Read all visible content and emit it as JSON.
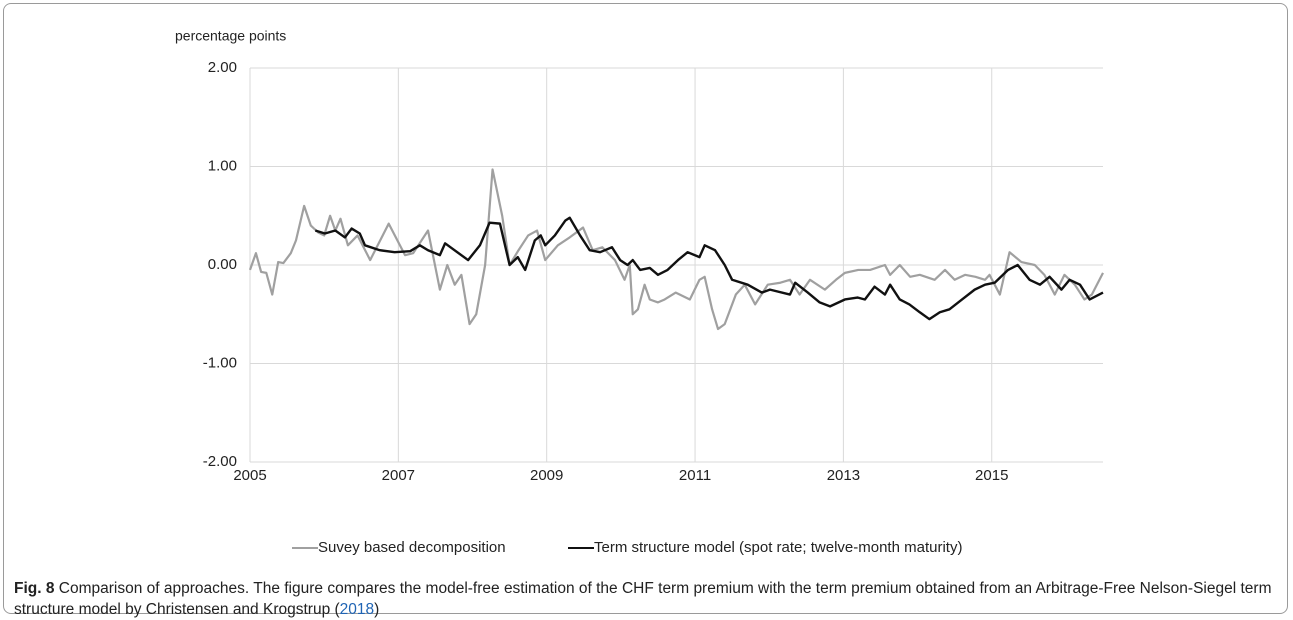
{
  "chart_data": {
    "type": "line",
    "y_label": "percentage points",
    "xlim": [
      2005,
      2016.5
    ],
    "xticks": [
      2005,
      2007,
      2009,
      2011,
      2013,
      2015
    ],
    "ylim": [
      -2,
      2
    ],
    "yticks": [
      {
        "value": -2,
        "label": "-2.00"
      },
      {
        "value": -1,
        "label": "-1.00"
      },
      {
        "value": 0,
        "label": "0.00"
      },
      {
        "value": 1,
        "label": "1.00"
      },
      {
        "value": 2,
        "label": "2.00"
      }
    ],
    "grid": true,
    "legend": "bottom",
    "series": [
      {
        "name": "Suvey based decomposition",
        "color": "#a0a0a0",
        "x": [
          2005.0,
          2005.08,
          2005.15,
          2005.22,
          2005.3,
          2005.38,
          2005.45,
          2005.55,
          2005.62,
          2005.73,
          2005.82,
          2005.92,
          2006.0,
          2006.08,
          2006.15,
          2006.22,
          2006.32,
          2006.45,
          2006.62,
          2006.87,
          2007.09,
          2007.2,
          2007.4,
          2007.56,
          2007.66,
          2007.76,
          2007.85,
          2007.96,
          2008.05,
          2008.17,
          2008.27,
          2008.4,
          2008.5,
          2008.62,
          2008.75,
          2008.87,
          2008.98,
          2009.15,
          2009.31,
          2009.49,
          2009.62,
          2009.75,
          2009.92,
          2010.05,
          2010.12,
          2010.16,
          2010.23,
          2010.32,
          2010.39,
          2010.5,
          2010.59,
          2010.74,
          2010.93,
          2011.06,
          2011.13,
          2011.23,
          2011.31,
          2011.4,
          2011.55,
          2011.67,
          2011.81,
          2011.98,
          2012.15,
          2012.28,
          2012.41,
          2012.55,
          2012.75,
          2012.9,
          2013.02,
          2013.2,
          2013.36,
          2013.56,
          2013.63,
          2013.76,
          2013.9,
          2014.03,
          2014.23,
          2014.37,
          2014.5,
          2014.64,
          2014.78,
          2014.91,
          2014.97,
          2015.11,
          2015.24,
          2015.4,
          2015.58,
          2015.71,
          2015.85,
          2015.98,
          2016.12,
          2016.25,
          2016.35,
          2016.5
        ],
        "values": [
          -0.05,
          0.12,
          -0.07,
          -0.08,
          -0.3,
          0.03,
          0.02,
          0.12,
          0.25,
          0.6,
          0.4,
          0.33,
          0.3,
          0.5,
          0.35,
          0.47,
          0.2,
          0.3,
          0.05,
          0.42,
          0.1,
          0.12,
          0.35,
          -0.25,
          0.0,
          -0.2,
          -0.1,
          -0.6,
          -0.5,
          0.0,
          0.97,
          0.5,
          0.0,
          0.15,
          0.3,
          0.35,
          0.05,
          0.2,
          0.28,
          0.38,
          0.15,
          0.18,
          0.05,
          -0.15,
          0.0,
          -0.5,
          -0.45,
          -0.2,
          -0.35,
          -0.38,
          -0.35,
          -0.28,
          -0.35,
          -0.15,
          -0.12,
          -0.45,
          -0.65,
          -0.6,
          -0.3,
          -0.2,
          -0.4,
          -0.2,
          -0.18,
          -0.15,
          -0.3,
          -0.15,
          -0.25,
          -0.15,
          -0.08,
          -0.05,
          -0.05,
          0.0,
          -0.1,
          0.0,
          -0.12,
          -0.1,
          -0.15,
          -0.05,
          -0.15,
          -0.1,
          -0.12,
          -0.15,
          -0.1,
          -0.3,
          0.13,
          0.03,
          0.0,
          -0.1,
          -0.3,
          -0.1,
          -0.2,
          -0.35,
          -0.3,
          -0.08
        ]
      },
      {
        "name": "Term structure model (spot rate; twelve-month maturity)",
        "color": "#111111",
        "x": [
          2005.88,
          2006.01,
          2006.15,
          2006.28,
          2006.37,
          2006.48,
          2006.55,
          2006.75,
          2006.95,
          2007.16,
          2007.29,
          2007.4,
          2007.56,
          2007.63,
          2007.94,
          2008.1,
          2008.23,
          2008.37,
          2008.5,
          2008.61,
          2008.71,
          2008.84,
          2008.92,
          2008.98,
          2009.11,
          2009.25,
          2009.31,
          2009.45,
          2009.58,
          2009.72,
          2009.88,
          2009.99,
          2010.09,
          2010.16,
          2010.26,
          2010.39,
          2010.5,
          2010.63,
          2010.7,
          2010.77,
          2010.9,
          2011.06,
          2011.13,
          2011.27,
          2011.4,
          2011.5,
          2011.71,
          2011.9,
          2012.01,
          2012.28,
          2012.35,
          2012.52,
          2012.68,
          2012.82,
          2013.02,
          2013.19,
          2013.29,
          2013.42,
          2013.56,
          2013.63,
          2013.76,
          2013.89,
          2014.03,
          2014.16,
          2014.3,
          2014.43,
          2014.6,
          2014.77,
          2014.91,
          2015.04,
          2015.22,
          2015.35,
          2015.51,
          2015.65,
          2015.78,
          2015.94,
          2016.05,
          2016.19,
          2016.32,
          2016.5
        ],
        "values": [
          0.35,
          0.32,
          0.35,
          0.28,
          0.37,
          0.32,
          0.2,
          0.15,
          0.13,
          0.14,
          0.2,
          0.15,
          0.1,
          0.22,
          0.05,
          0.2,
          0.43,
          0.42,
          0.0,
          0.08,
          -0.05,
          0.25,
          0.3,
          0.2,
          0.3,
          0.45,
          0.48,
          0.3,
          0.15,
          0.13,
          0.18,
          0.05,
          0.0,
          0.05,
          -0.05,
          -0.03,
          -0.1,
          -0.05,
          0.0,
          0.05,
          0.13,
          0.08,
          0.2,
          0.15,
          0.0,
          -0.15,
          -0.2,
          -0.28,
          -0.25,
          -0.3,
          -0.18,
          -0.28,
          -0.38,
          -0.42,
          -0.35,
          -0.33,
          -0.35,
          -0.22,
          -0.3,
          -0.2,
          -0.35,
          -0.4,
          -0.48,
          -0.55,
          -0.48,
          -0.45,
          -0.35,
          -0.25,
          -0.2,
          -0.18,
          -0.05,
          0.0,
          -0.15,
          -0.2,
          -0.12,
          -0.25,
          -0.15,
          -0.2,
          -0.35,
          -0.28
        ]
      }
    ]
  },
  "caption": {
    "label": "Fig. 8",
    "text": "Comparison of approaches. The figure compares the model-free estimation of the CHF term premium with the term premium obtained from an Arbitrage-Free Nelson-Siegel term structure model by Christensen and Krogstrup (",
    "link": "2018",
    "text_end": ")"
  }
}
